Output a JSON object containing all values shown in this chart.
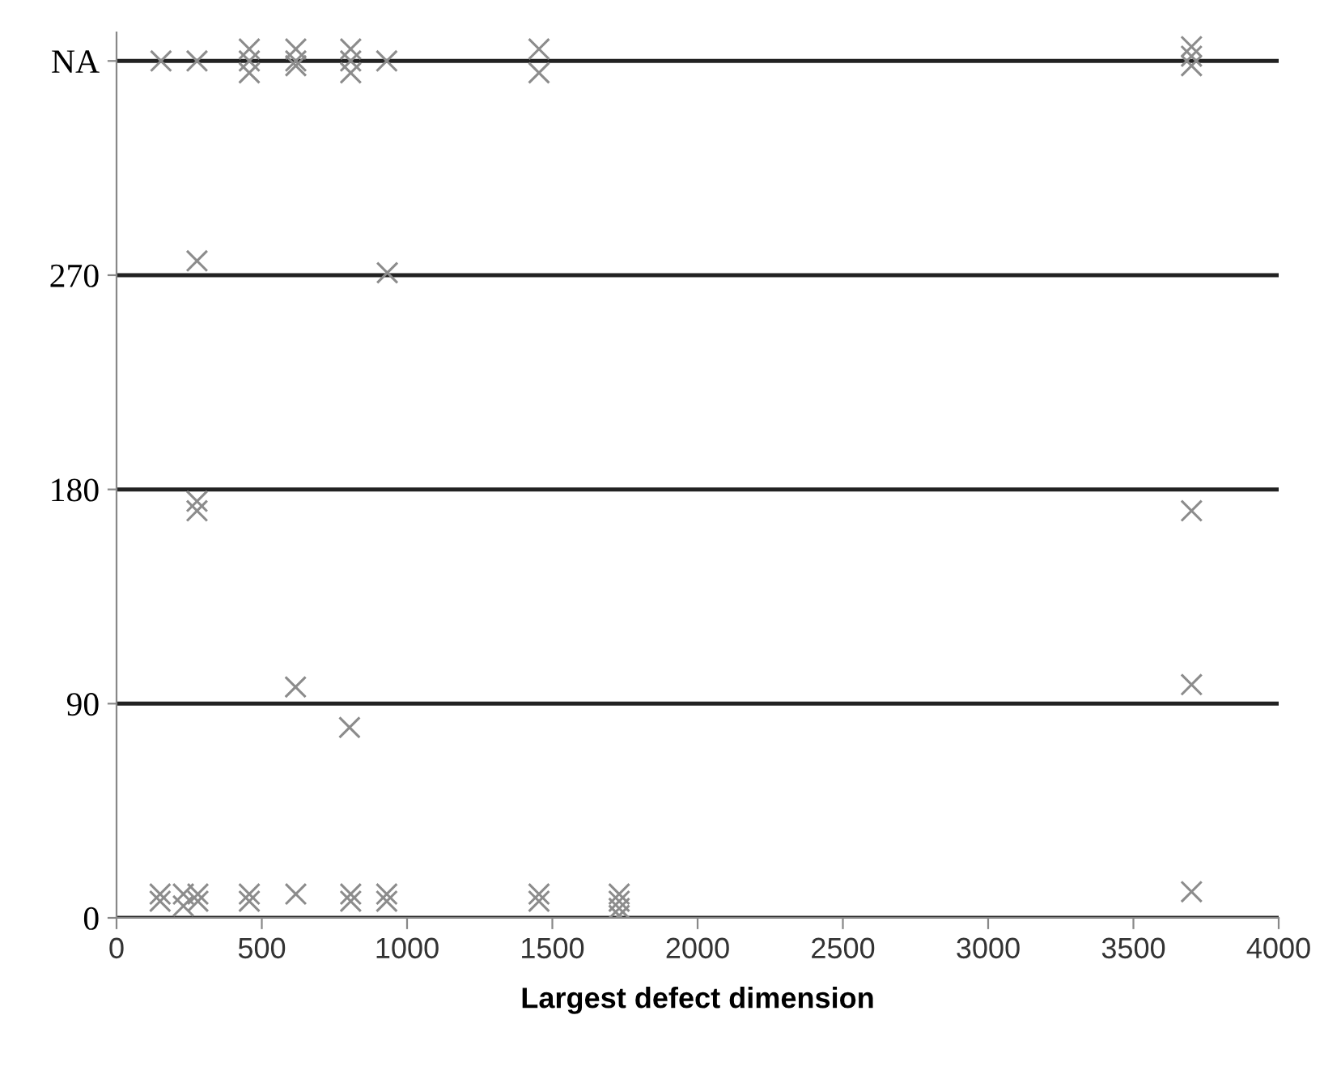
{
  "chart_data": {
    "type": "scatter",
    "xlabel": "Largest defect dimension",
    "marker": "cross",
    "grid": "y",
    "xlim": [
      0,
      4000
    ],
    "xticks": [
      0,
      500,
      1000,
      1500,
      2000,
      2500,
      3000,
      3500,
      4000
    ],
    "ylim": [
      0,
      372
    ],
    "yticks": [
      0,
      90,
      180,
      270,
      {
        "value": 360,
        "label": "NA"
      }
    ],
    "series": [
      {
        "color": "#8c8c8c",
        "x": [
          153,
          277,
          457,
          457,
          457,
          617,
          617,
          617,
          806,
          806,
          806,
          930,
          1454,
          1454,
          3700,
          3700,
          3700,
          277,
          932,
          277,
          277,
          3700,
          616,
          802,
          3700,
          150,
          150,
          230,
          230,
          280,
          280,
          457,
          457,
          617,
          806,
          806,
          930,
          930,
          1454,
          1454,
          1730,
          1730,
          1730,
          1730,
          3700
        ],
        "values": [
          360,
          360,
          365,
          360,
          355,
          365,
          360,
          358,
          365,
          360,
          355,
          360,
          365,
          355,
          366,
          362,
          358,
          276,
          271,
          175,
          171,
          171,
          97,
          80,
          98,
          10,
          7,
          10,
          5,
          10,
          7,
          10,
          7,
          10,
          10,
          7,
          10,
          7,
          10,
          7,
          10,
          7,
          4,
          1,
          11
        ]
      }
    ]
  }
}
